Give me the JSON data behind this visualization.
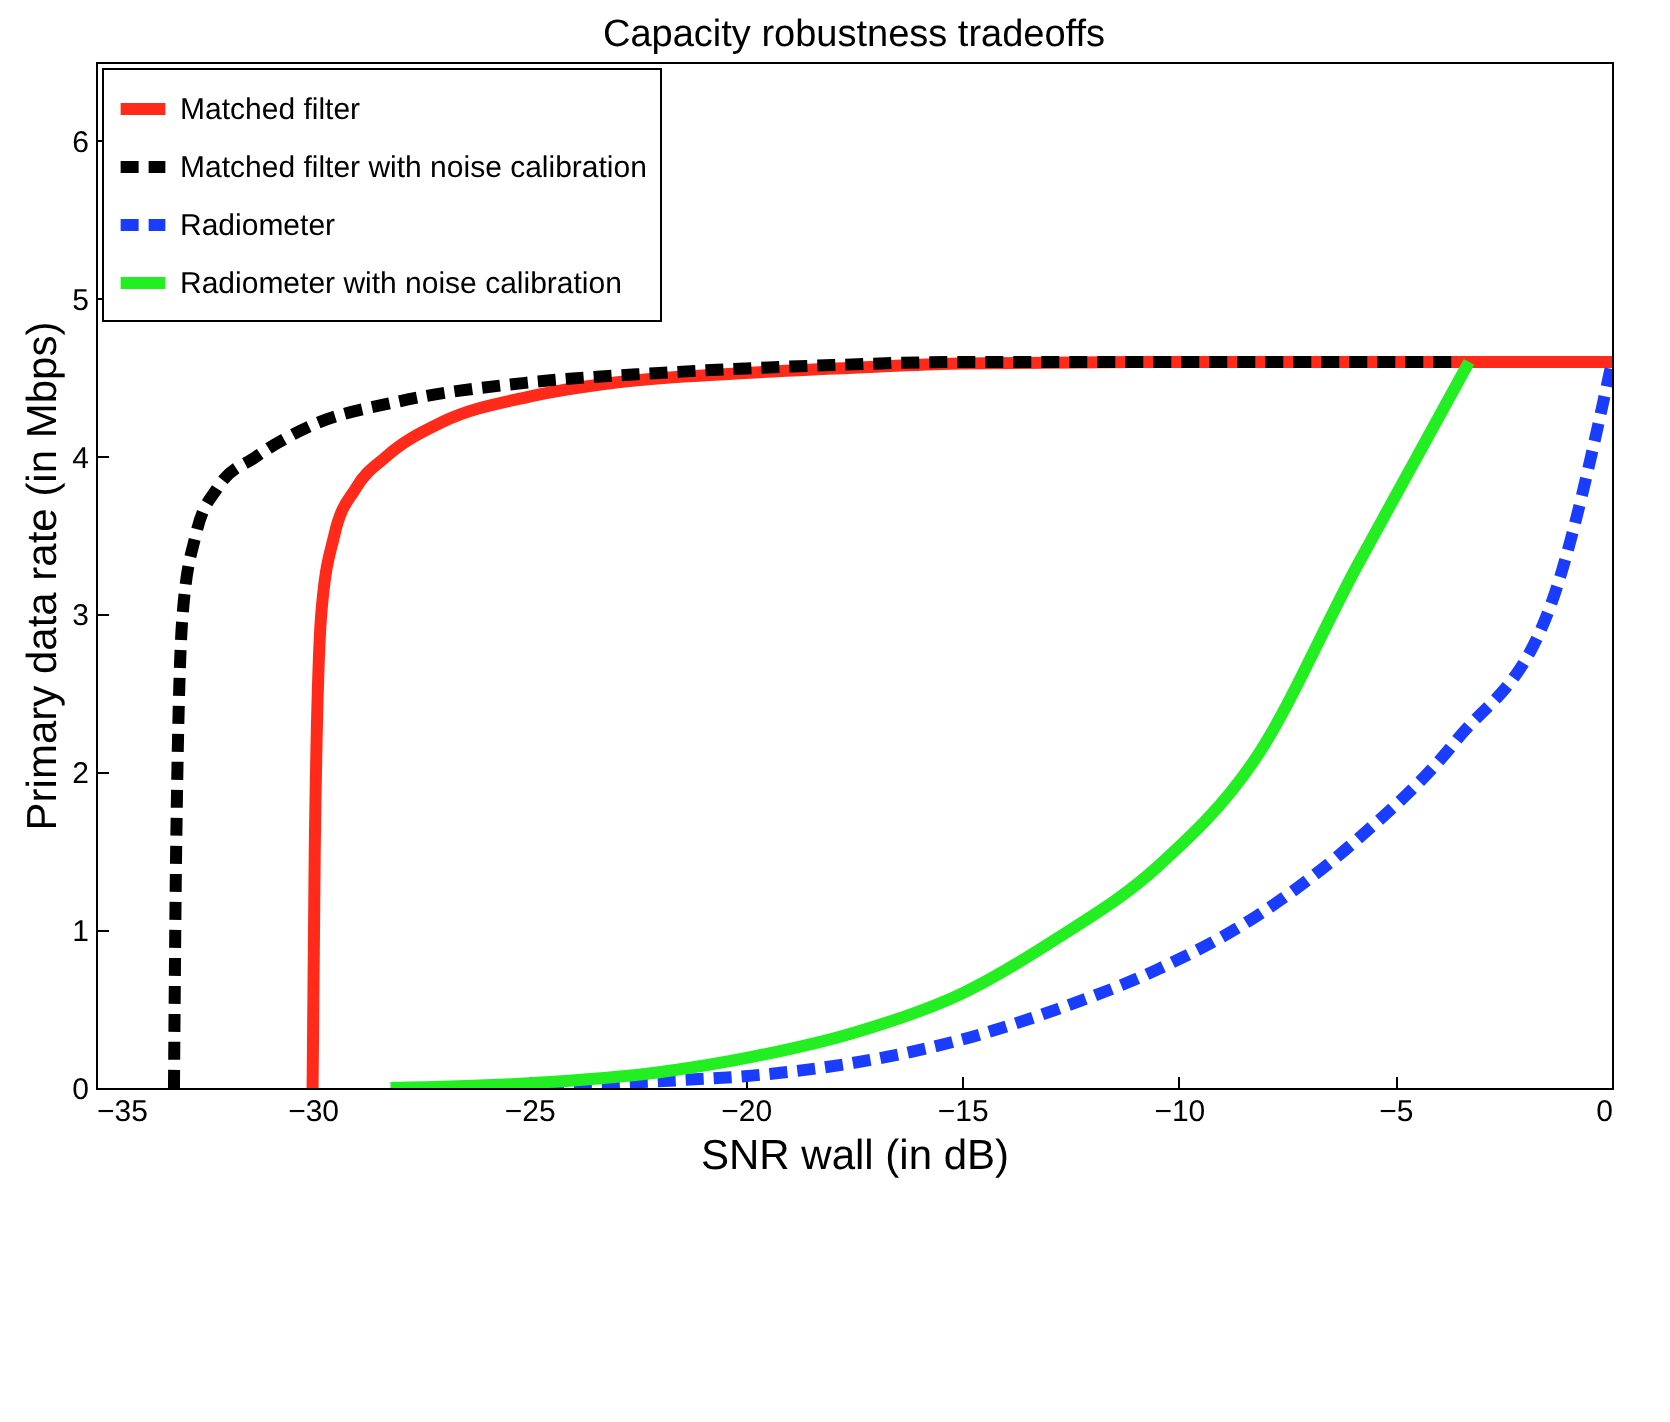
{
  "chart_data": {
    "type": "line",
    "title": "Capacity robustness tradeoffs",
    "xlabel": "SNR wall (in dB)",
    "ylabel": "Primary data rate (in Mbps)",
    "xlim": [
      -35,
      0
    ],
    "xticks": [
      -35,
      -30,
      -25,
      -20,
      -15,
      -10,
      -5,
      0
    ],
    "ylim": [
      0,
      6.5
    ],
    "yticks": [
      0,
      1,
      2,
      3,
      4,
      5,
      6
    ],
    "legend": "top left",
    "series": [
      {
        "name": "Matched filter",
        "color": "#ff2a1a",
        "line_style": "solid",
        "x": [
          -30,
          -29.95,
          -29.8,
          -29.5,
          -29,
          -28.3,
          -27,
          -25,
          -23,
          -20,
          -17,
          -15,
          -10,
          -5,
          0
        ],
        "values": [
          0,
          1.5,
          3.0,
          3.5,
          3.8,
          4.0,
          4.22,
          4.38,
          4.47,
          4.53,
          4.57,
          4.59,
          4.6,
          4.6,
          4.6
        ]
      },
      {
        "name": "Matched filter with noise calibration",
        "color": "#000000",
        "line_style": "dashed",
        "x": [
          -33.2,
          -33.15,
          -33.0,
          -32.7,
          -32.2,
          -31.3,
          -30,
          -28,
          -25,
          -22,
          -18,
          -15,
          -10,
          -3.5
        ],
        "values": [
          0,
          1.5,
          3.0,
          3.5,
          3.8,
          4.0,
          4.2,
          4.35,
          4.47,
          4.53,
          4.58,
          4.6,
          4.6,
          4.6
        ]
      },
      {
        "name": "Radiometer",
        "color": "#1a3cff",
        "line_style": "dashed",
        "x": [
          -27.2,
          -24,
          -21.5,
          -19.8,
          -17.5,
          -15.1,
          -12.8,
          -10.5,
          -8.2,
          -5.9,
          -3.6,
          -1.3,
          0
        ],
        "values": [
          0,
          0.02,
          0.05,
          0.08,
          0.16,
          0.3,
          0.5,
          0.75,
          1.09,
          1.57,
          2.2,
          3.15,
          4.6
        ]
      },
      {
        "name": "Radiometer with noise calibration",
        "color": "#22ee22",
        "line_style": "solid",
        "x": [
          -28.2,
          -25,
          -22,
          -19.8,
          -17.5,
          -15,
          -12.8,
          -10.5,
          -8.2,
          -5.9,
          -4.5,
          -3.3
        ],
        "values": [
          0,
          0.03,
          0.1,
          0.2,
          0.35,
          0.6,
          0.95,
          1.4,
          2.1,
          3.3,
          4.0,
          4.6
        ]
      }
    ]
  }
}
